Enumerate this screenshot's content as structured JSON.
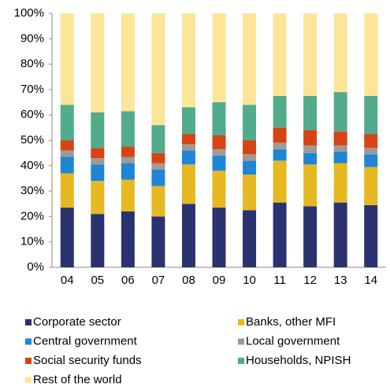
{
  "chart_data": {
    "type": "bar",
    "stacked": true,
    "categories": [
      "04",
      "05",
      "06",
      "07",
      "08",
      "09",
      "10",
      "11",
      "12",
      "13",
      "14"
    ],
    "series": [
      {
        "name": "Corporate sector",
        "color": "#2b3270",
        "values": [
          23.5,
          21,
          22,
          20,
          25,
          23.5,
          22.5,
          25.5,
          24,
          25.5,
          24.5
        ]
      },
      {
        "name": "Banks, other MFI",
        "color": "#e6b821",
        "values": [
          13.5,
          13,
          12.5,
          12,
          15.5,
          14.5,
          14,
          16.5,
          16.5,
          15.5,
          15
        ]
      },
      {
        "name": "Central government",
        "color": "#1f86d6",
        "values": [
          6.5,
          6.5,
          6.5,
          6.5,
          5.5,
          6,
          5.5,
          4.5,
          4.5,
          4.5,
          5
        ]
      },
      {
        "name": "Local government",
        "color": "#a09a94",
        "values": [
          2.5,
          2.5,
          2.5,
          2.5,
          2.5,
          2.5,
          2.5,
          2.5,
          3,
          2.5,
          2.5
        ]
      },
      {
        "name": "Social security funds",
        "color": "#d84315",
        "values": [
          4,
          4,
          4,
          4,
          4,
          5.5,
          5.5,
          6,
          6,
          5.5,
          5.5
        ]
      },
      {
        "name": "Households, NPISH",
        "color": "#52ab8a",
        "values": [
          14,
          14,
          14,
          11,
          10.5,
          13,
          14,
          12.5,
          13.5,
          15.5,
          15
        ]
      },
      {
        "name": "Rest of the world",
        "color": "#fde598",
        "values": [
          36,
          39,
          38.5,
          44,
          37,
          35,
          36,
          32.5,
          32.5,
          31,
          32.5
        ]
      }
    ],
    "ylim": [
      0,
      100
    ],
    "yticks": [
      {
        "value": 0,
        "label": "0%"
      },
      {
        "value": 10,
        "label": "10%"
      },
      {
        "value": 20,
        "label": "20%"
      },
      {
        "value": 30,
        "label": "30%"
      },
      {
        "value": 40,
        "label": "40%"
      },
      {
        "value": 50,
        "label": "50%"
      },
      {
        "value": 60,
        "label": "60%"
      },
      {
        "value": 70,
        "label": "70%"
      },
      {
        "value": 80,
        "label": "80%"
      },
      {
        "value": 90,
        "label": "90%"
      },
      {
        "value": 100,
        "label": "100%"
      }
    ],
    "grid": false
  }
}
